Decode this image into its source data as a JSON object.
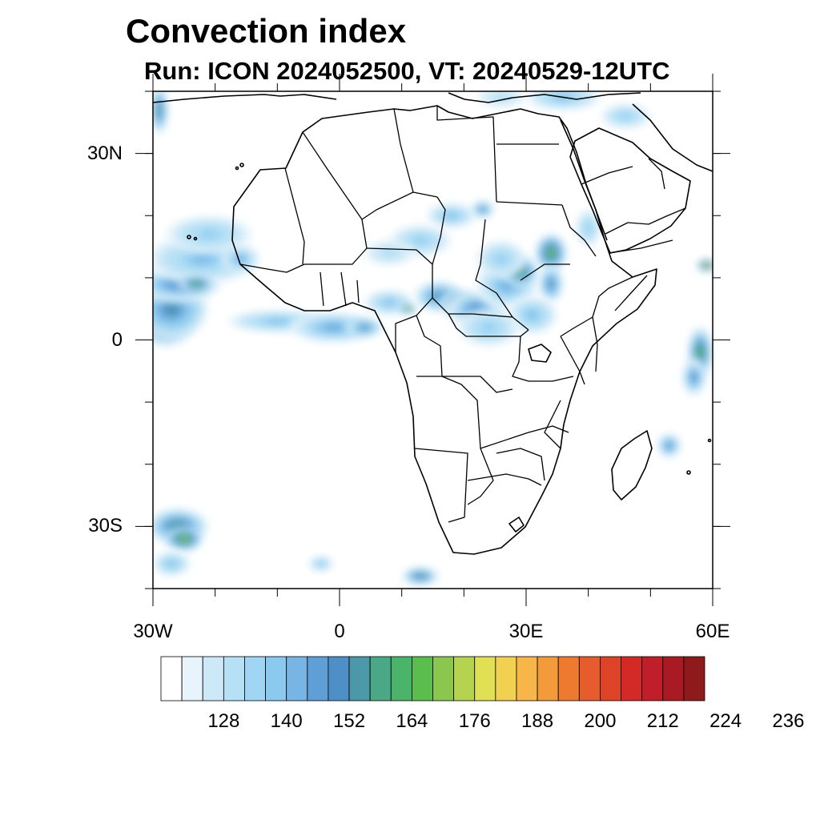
{
  "title": "Convection index",
  "subtitle": "Run: ICON 2024052500,  VT: 20240529-12UTC",
  "map": {
    "lon_range": [
      -30,
      60
    ],
    "lat_range": [
      -40,
      40
    ],
    "lat_ticks": [
      {
        "lat": 30,
        "label": "30N"
      },
      {
        "lat": 0,
        "label": "0"
      },
      {
        "lat": -30,
        "label": "30S"
      }
    ],
    "lon_ticks": [
      {
        "lon": -30,
        "label": "30W"
      },
      {
        "lon": 0,
        "label": "0"
      },
      {
        "lon": 30,
        "label": "30E"
      },
      {
        "lon": 60,
        "label": "60E"
      }
    ],
    "minor_ticks_deg": 10
  },
  "colorbar": {
    "colors": [
      "#ffffff",
      "#e8f4fb",
      "#cde9f8",
      "#b6e0f5",
      "#a0d6f3",
      "#8cc9ee",
      "#78b5e4",
      "#5f9ed6",
      "#4f8fc7",
      "#4b98a8",
      "#4aa886",
      "#4ab56a",
      "#5bbd4e",
      "#8bc64f",
      "#b5d34f",
      "#e0e055",
      "#f2d150",
      "#f6b649",
      "#f39a3b",
      "#ee7a30",
      "#e65c2c",
      "#df4327",
      "#d42a27",
      "#c01e2a",
      "#a91a24",
      "#8e1a1c"
    ],
    "labels": [
      "128",
      "140",
      "152",
      "164",
      "176",
      "188",
      "200",
      "212",
      "224",
      "236"
    ]
  },
  "cells": [
    {
      "lon": -29,
      "lat": 4,
      "level": 20,
      "rx": 3.5,
      "ry": 3.5
    },
    {
      "lon": -28,
      "lat": 4,
      "level": 14,
      "rx": 5,
      "ry": 5
    },
    {
      "lon": -27,
      "lat": 5,
      "level": 9,
      "rx": 6,
      "ry": 5
    },
    {
      "lon": -26,
      "lat": 9,
      "level": 8,
      "rx": 7,
      "ry": 3
    },
    {
      "lon": -22,
      "lat": 13,
      "level": 6,
      "rx": 9,
      "ry": 4
    },
    {
      "lon": -21,
      "lat": 17,
      "level": 5,
      "rx": 7,
      "ry": 3
    },
    {
      "lon": -23,
      "lat": 9,
      "level": 12,
      "rx": 3,
      "ry": 1.5
    },
    {
      "lon": -29,
      "lat": 37,
      "level": 10,
      "rx": 1.5,
      "ry": 4
    },
    {
      "lon": -16,
      "lat": 13,
      "level": 7,
      "rx": 3,
      "ry": 2
    },
    {
      "lon": -10,
      "lat": 3,
      "level": 6,
      "rx": 8,
      "ry": 1.8
    },
    {
      "lon": -1,
      "lat": 2,
      "level": 7,
      "rx": 7,
      "ry": 2.5
    },
    {
      "lon": 4,
      "lat": 2,
      "level": 9,
      "rx": 3,
      "ry": 1.5
    },
    {
      "lon": 8,
      "lat": 6,
      "level": 6,
      "rx": 4,
      "ry": 2
    },
    {
      "lon": 11,
      "lat": 5,
      "level": 15,
      "rx": 1.5,
      "ry": 0.8
    },
    {
      "lon": 16,
      "lat": 7,
      "level": 9,
      "rx": 4,
      "ry": 2.5
    },
    {
      "lon": 19,
      "lat": 6,
      "level": 11,
      "rx": 3,
      "ry": 2
    },
    {
      "lon": 22,
      "lat": 5,
      "level": 8,
      "rx": 5,
      "ry": 3
    },
    {
      "lon": 27,
      "lat": 9,
      "level": 7,
      "rx": 5,
      "ry": 4
    },
    {
      "lon": 29,
      "lat": 11,
      "level": 12,
      "rx": 3,
      "ry": 2.5
    },
    {
      "lon": 34,
      "lat": 14,
      "level": 13,
      "rx": 2.5,
      "ry": 3
    },
    {
      "lon": 34,
      "lat": 9,
      "level": 9,
      "rx": 2,
      "ry": 3
    },
    {
      "lon": 31,
      "lat": 4,
      "level": 6,
      "rx": 4,
      "ry": 3
    },
    {
      "lon": 24,
      "lat": 2,
      "level": 5,
      "rx": 5,
      "ry": 3
    },
    {
      "lon": 18,
      "lat": 20,
      "level": 6,
      "rx": 4,
      "ry": 2
    },
    {
      "lon": 23,
      "lat": 21,
      "level": 8,
      "rx": 2,
      "ry": 1.5
    },
    {
      "lon": 26,
      "lat": 13,
      "level": 5,
      "rx": 4,
      "ry": 3
    },
    {
      "lon": 13,
      "lat": 16,
      "level": 5,
      "rx": 5,
      "ry": 2.5
    },
    {
      "lon": 8,
      "lat": 14,
      "level": 4,
      "rx": 4,
      "ry": 2
    },
    {
      "lon": 40,
      "lat": 18,
      "level": 5,
      "rx": 2,
      "ry": 3
    },
    {
      "lon": 36,
      "lat": 39,
      "level": 6,
      "rx": 6,
      "ry": 2
    },
    {
      "lon": 26,
      "lat": 39,
      "level": 4,
      "rx": 4,
      "ry": 1.5
    },
    {
      "lon": 46,
      "lat": 36,
      "level": 5,
      "rx": 4,
      "ry": 2
    },
    {
      "lon": 59,
      "lat": 12,
      "level": 18,
      "rx": 1.5,
      "ry": 1
    },
    {
      "lon": 58,
      "lat": -2,
      "level": 12,
      "rx": 2,
      "ry": 4
    },
    {
      "lon": 57,
      "lat": -6,
      "level": 8,
      "rx": 2,
      "ry": 3
    },
    {
      "lon": 53,
      "lat": -17,
      "level": 8,
      "rx": 2,
      "ry": 2
    },
    {
      "lon": -26,
      "lat": -30,
      "level": 10,
      "rx": 5,
      "ry": 3
    },
    {
      "lon": -25,
      "lat": -32,
      "level": 14,
      "rx": 3,
      "ry": 2
    },
    {
      "lon": -27,
      "lat": -36,
      "level": 6,
      "rx": 3,
      "ry": 2
    },
    {
      "lon": -3,
      "lat": -36,
      "level": 6,
      "rx": 2,
      "ry": 1.2
    },
    {
      "lon": 13,
      "lat": -38,
      "level": 10,
      "rx": 3,
      "ry": 1.5
    }
  ]
}
